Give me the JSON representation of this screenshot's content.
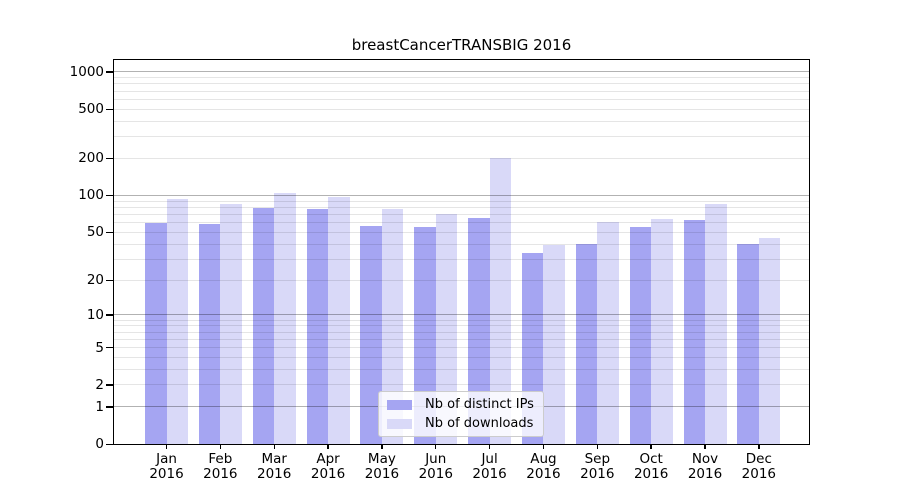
{
  "title": "breastCancerTRANSBIG 2016",
  "legend": {
    "items": [
      {
        "label": "Nb of distinct IPs",
        "color": "#a5a5f2"
      },
      {
        "label": "Nb of downloads",
        "color": "#d9d9f8"
      }
    ]
  },
  "chart_data": {
    "type": "bar",
    "title": "breastCancerTRANSBIG 2016",
    "categories": [
      "Jan",
      "Feb",
      "Mar",
      "Apr",
      "May",
      "Jun",
      "Jul",
      "Aug",
      "Sep",
      "Oct",
      "Nov",
      "Dec"
    ],
    "year": "2016",
    "series": [
      {
        "name": "Nb of distinct IPs",
        "color": "#a5a5f2",
        "values": [
          60,
          59,
          79,
          77,
          56,
          55,
          65,
          34,
          40,
          55,
          63,
          40
        ]
      },
      {
        "name": "Nb of downloads",
        "color": "#d9d9f8",
        "values": [
          93,
          85,
          105,
          97,
          78,
          70,
          200,
          39,
          61,
          64,
          85,
          45
        ]
      }
    ],
    "yticks": [
      1000,
      500,
      200,
      100,
      50,
      20,
      10,
      5,
      2,
      1,
      0
    ],
    "scale": "log10(value+1)",
    "ylim": [
      0,
      1285
    ],
    "grid": {
      "on": true,
      "major": [
        1,
        10,
        100,
        1000
      ],
      "minor": [
        2,
        3,
        4,
        5,
        6,
        7,
        8,
        9,
        20,
        30,
        40,
        50,
        60,
        70,
        80,
        90,
        200,
        300,
        400,
        500,
        600,
        700,
        800,
        900
      ]
    },
    "legend_position": "lower-center"
  }
}
